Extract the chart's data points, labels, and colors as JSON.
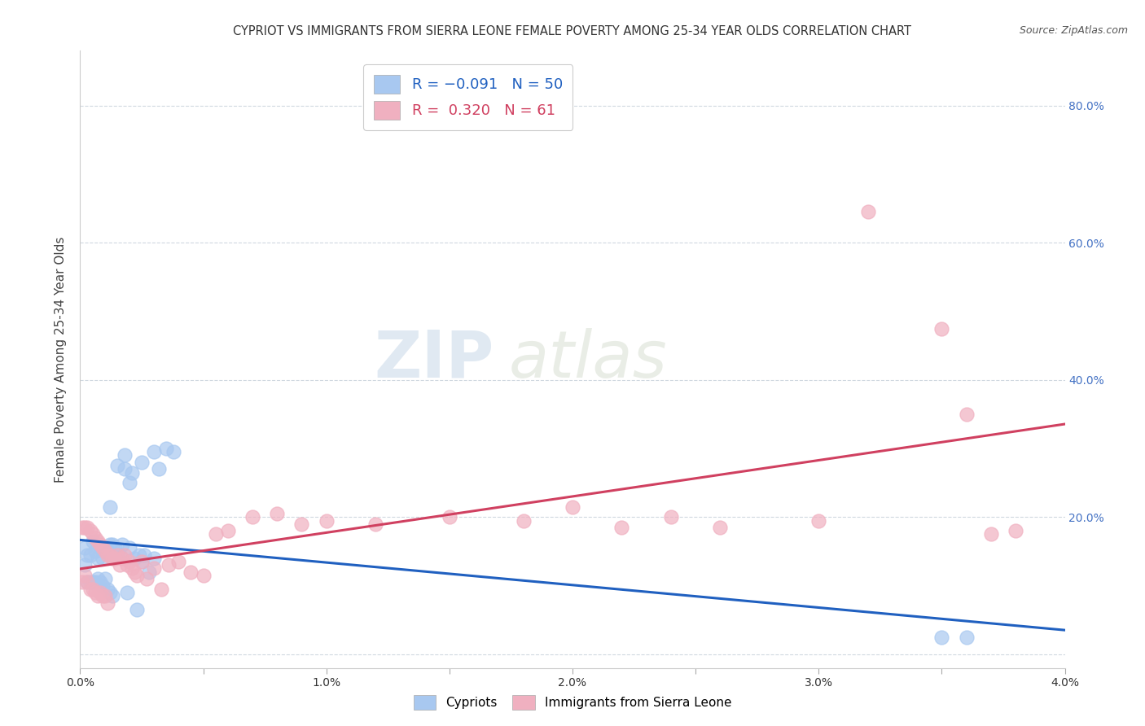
{
  "title": "CYPRIOT VS IMMIGRANTS FROM SIERRA LEONE FEMALE POVERTY AMONG 25-34 YEAR OLDS CORRELATION CHART",
  "source": "Source: ZipAtlas.com",
  "ylabel": "Female Poverty Among 25-34 Year Olds",
  "xlim": [
    0.0,
    0.04
  ],
  "ylim": [
    -0.02,
    0.88
  ],
  "xticks": [
    0.0,
    0.005,
    0.01,
    0.015,
    0.02,
    0.025,
    0.03,
    0.035,
    0.04
  ],
  "xticklabels": [
    "0.0%",
    "",
    "1.0%",
    "",
    "2.0%",
    "",
    "3.0%",
    "",
    "4.0%"
  ],
  "yticks_right": [
    0.0,
    0.2,
    0.4,
    0.6,
    0.8
  ],
  "yticklabels_right": [
    "",
    "20.0%",
    "40.0%",
    "60.0%",
    "80.0%"
  ],
  "color_blue": "#a8c8f0",
  "color_pink": "#f0b0c0",
  "color_blue_line": "#2060c0",
  "color_pink_line": "#d04060",
  "watermark_zip": "ZIP",
  "watermark_atlas": "atlas",
  "grid_color": "#d0d8e0",
  "background_color": "#ffffff",
  "blue_scatter_x": [
    0.0002,
    0.0002,
    0.0003,
    0.0003,
    0.0004,
    0.0004,
    0.0005,
    0.0005,
    0.0006,
    0.0006,
    0.0007,
    0.0007,
    0.0008,
    0.0008,
    0.0009,
    0.0009,
    0.001,
    0.001,
    0.0011,
    0.0011,
    0.0012,
    0.0012,
    0.0013,
    0.0013,
    0.0014,
    0.0015,
    0.0016,
    0.0017,
    0.0018,
    0.0019,
    0.002,
    0.0021,
    0.0022,
    0.0023,
    0.0024,
    0.0025,
    0.0026,
    0.0028,
    0.003,
    0.0032,
    0.0035,
    0.0038,
    0.0018,
    0.0015,
    0.0012,
    0.002,
    0.0025,
    0.003,
    0.035,
    0.036
  ],
  "blue_scatter_y": [
    0.155,
    0.13,
    0.145,
    0.105,
    0.145,
    0.105,
    0.165,
    0.105,
    0.15,
    0.105,
    0.14,
    0.11,
    0.155,
    0.105,
    0.14,
    0.1,
    0.155,
    0.11,
    0.15,
    0.095,
    0.16,
    0.09,
    0.16,
    0.085,
    0.155,
    0.145,
    0.145,
    0.16,
    0.27,
    0.09,
    0.155,
    0.265,
    0.14,
    0.065,
    0.145,
    0.135,
    0.145,
    0.12,
    0.14,
    0.27,
    0.3,
    0.295,
    0.29,
    0.275,
    0.215,
    0.25,
    0.28,
    0.295,
    0.025,
    0.025
  ],
  "pink_scatter_x": [
    0.0001,
    0.0001,
    0.0002,
    0.0002,
    0.0003,
    0.0003,
    0.0004,
    0.0004,
    0.0005,
    0.0005,
    0.0006,
    0.0006,
    0.0007,
    0.0007,
    0.0008,
    0.0008,
    0.0009,
    0.0009,
    0.001,
    0.001,
    0.0011,
    0.0011,
    0.0012,
    0.0013,
    0.0014,
    0.0015,
    0.0016,
    0.0017,
    0.0018,
    0.0019,
    0.002,
    0.0021,
    0.0022,
    0.0023,
    0.0025,
    0.0027,
    0.003,
    0.0033,
    0.0036,
    0.004,
    0.0045,
    0.005,
    0.0055,
    0.006,
    0.007,
    0.008,
    0.009,
    0.01,
    0.012,
    0.015,
    0.018,
    0.02,
    0.022,
    0.024,
    0.026,
    0.03,
    0.032,
    0.035,
    0.036,
    0.038,
    0.037
  ],
  "pink_scatter_y": [
    0.185,
    0.105,
    0.185,
    0.115,
    0.185,
    0.105,
    0.18,
    0.095,
    0.175,
    0.095,
    0.17,
    0.09,
    0.165,
    0.085,
    0.16,
    0.09,
    0.155,
    0.085,
    0.15,
    0.085,
    0.145,
    0.075,
    0.145,
    0.14,
    0.14,
    0.145,
    0.13,
    0.14,
    0.145,
    0.13,
    0.135,
    0.125,
    0.12,
    0.115,
    0.135,
    0.11,
    0.125,
    0.095,
    0.13,
    0.135,
    0.12,
    0.115,
    0.175,
    0.18,
    0.2,
    0.205,
    0.19,
    0.195,
    0.19,
    0.2,
    0.195,
    0.215,
    0.185,
    0.2,
    0.185,
    0.195,
    0.645,
    0.475,
    0.35,
    0.18,
    0.175
  ]
}
